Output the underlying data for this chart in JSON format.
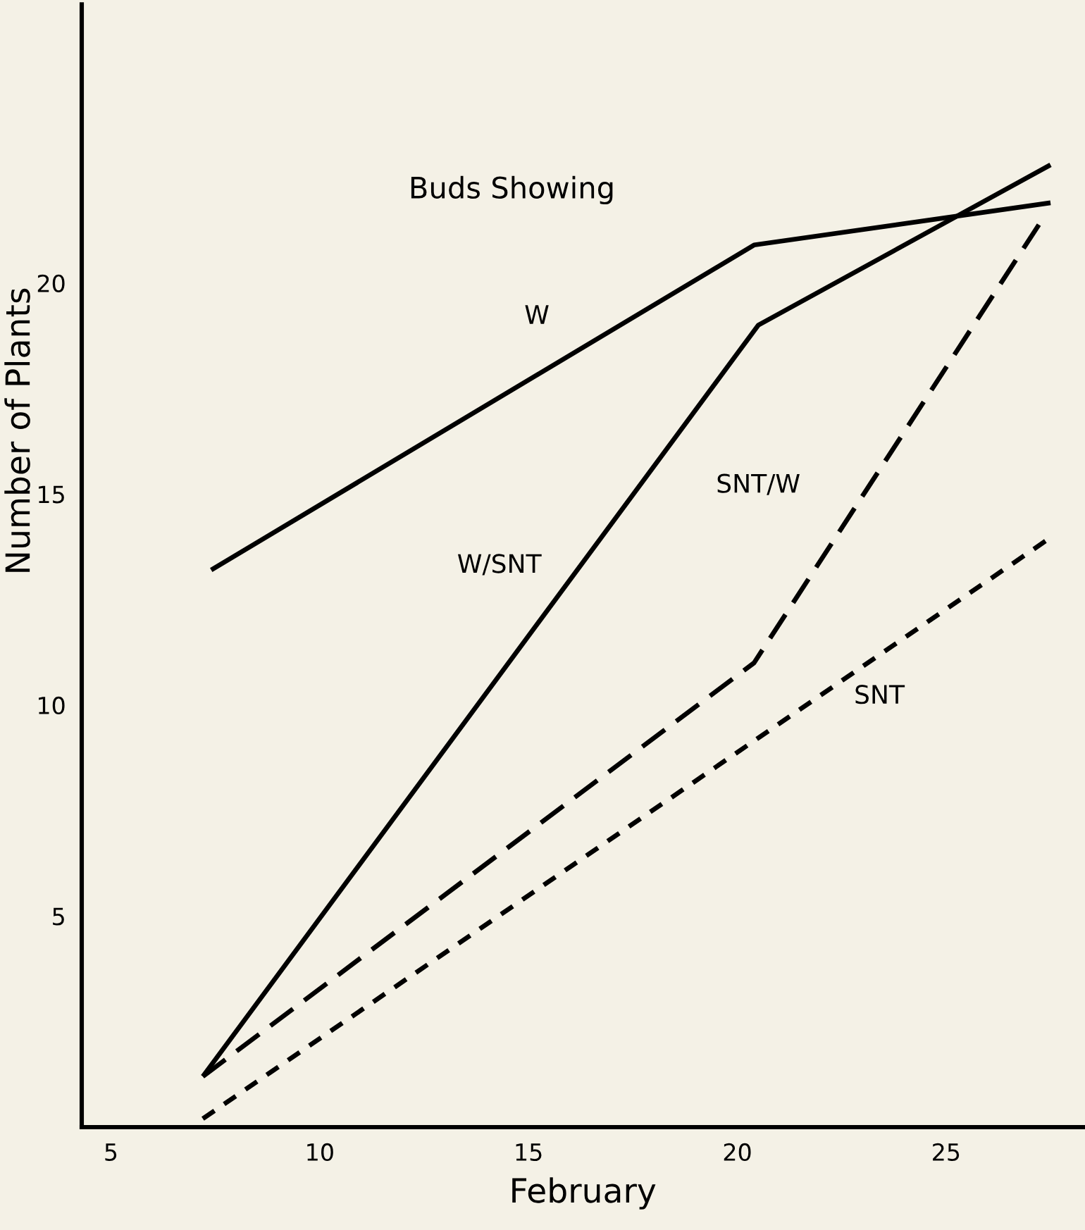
{
  "chart_data": {
    "type": "line",
    "title": "Buds Showing",
    "xlabel": "February",
    "ylabel": "Number of Plants",
    "xlim": [
      4.3,
      28.3
    ],
    "ylim": [
      0,
      26.6
    ],
    "xticks": [
      5,
      10,
      15,
      20,
      25
    ],
    "yticks": [
      5,
      10,
      15,
      20
    ],
    "grid": false,
    "legend": false,
    "marker": "none",
    "series": [
      {
        "name": "W",
        "color": "#000000",
        "line_style": "solid",
        "x": [
          7.4,
          20.4,
          27.5
        ],
        "values": [
          13.2,
          20.9,
          21.9
        ]
      },
      {
        "name": "W/SNT",
        "color": "#000000",
        "line_style": "solid",
        "x": [
          7.2,
          20.5,
          27.5
        ],
        "values": [
          1.2,
          19,
          22.8
        ]
      },
      {
        "name": "SNT/W",
        "color": "#000000",
        "line_style": "dashed",
        "x": [
          7.2,
          20.4,
          27.3
        ],
        "values": [
          1.2,
          11.0,
          21.5
        ]
      },
      {
        "name": "SNT",
        "color": "#000000",
        "line_style": "dotted",
        "x": [
          7.2,
          27.4
        ],
        "values": [
          0.2,
          13.9
        ]
      }
    ]
  }
}
